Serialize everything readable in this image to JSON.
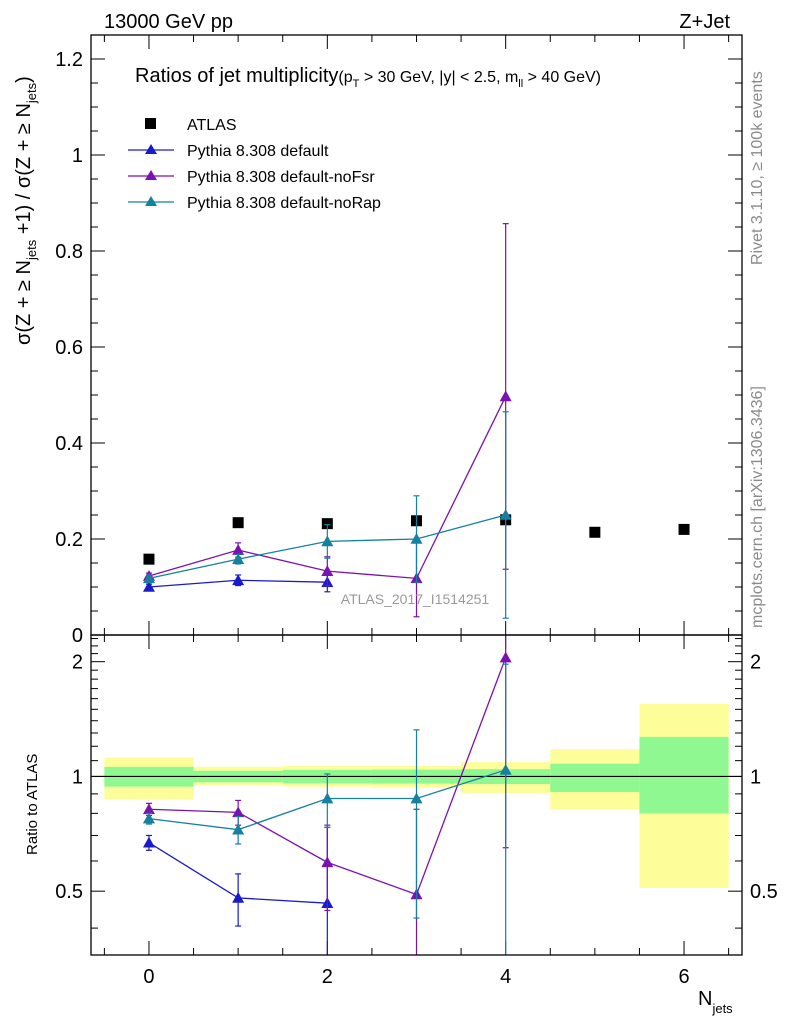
{
  "header": {
    "energy_label": "13000 GeV pp",
    "process_label": "Z+Jet"
  },
  "side_labels": {
    "rivet": "Rivet 3.1.10, ≥ 100k events",
    "mcplots": "mcplots.cern.ch [arXiv:1306.3436]"
  },
  "watermark": "ATLAS_2017_I1514251",
  "colors": {
    "data": "#000000",
    "default": "#1a1acc",
    "noFsr": "#7a12b0",
    "noRap": "#1580a0",
    "band_stat": "#90f890",
    "band_total": "#fdfd9a"
  },
  "chart_data": [
    {
      "type": "scatter",
      "panel": "main",
      "title": "Ratios of jet multiplicity",
      "title_cuts": {
        "p": "p",
        "T": "T",
        "cut1": " > 30 GeV, |y| < 2.5, m",
        "ll": "ll",
        "cut2": " > 40 GeV)",
        "open": "("
      },
      "ylabel": {
        "a": "σ(Z + ≥ N",
        "b": "jets",
        "c": " +1) / σ(Z + ≥ N",
        "d": "jets",
        "e": ")"
      },
      "xlim": [
        -0.65,
        6.65
      ],
      "ylim": [
        0,
        1.25
      ],
      "yticks": [
        0,
        0.2,
        0.4,
        0.6,
        0.8,
        1,
        1.2
      ],
      "ytick_labels": [
        "0",
        "0.2",
        "0.4",
        "0.6",
        "0.8",
        "1",
        "1.2"
      ],
      "legend_position": "top-left",
      "series": [
        {
          "name": "ATLAS",
          "key": "data",
          "marker": "square",
          "x": [
            0,
            1,
            2,
            3,
            4,
            5,
            6
          ],
          "y": [
            0.158,
            0.234,
            0.232,
            0.238,
            0.24,
            0.214,
            0.22
          ]
        },
        {
          "name": "Pythia 8.308 default",
          "key": "default",
          "marker": "triangle",
          "x": [
            0,
            1,
            2
          ],
          "y": [
            0.1,
            0.114,
            0.11
          ],
          "err": [
            0.006,
            0.011,
            0.02
          ]
        },
        {
          "name": "Pythia 8.308 default-noFsr",
          "key": "noFsr",
          "marker": "triangle",
          "x": [
            0,
            1,
            2,
            3,
            4
          ],
          "y": [
            0.123,
            0.177,
            0.133,
            0.118,
            0.497
          ],
          "err": [
            0.006,
            0.015,
            0.03,
            0.08,
            0.36
          ]
        },
        {
          "name": "Pythia 8.308 default-noRap",
          "key": "noRap",
          "marker": "triangle",
          "x": [
            0,
            1,
            2,
            3,
            4
          ],
          "y": [
            0.118,
            0.158,
            0.195,
            0.2,
            0.25
          ],
          "err": [
            0.005,
            0.01,
            0.035,
            0.09,
            0.215
          ]
        }
      ]
    },
    {
      "type": "scatter",
      "panel": "ratio",
      "xlabel": {
        "a": "N",
        "b": "jets"
      },
      "ylabel": "Ratio to ATLAS",
      "xlim": [
        -0.65,
        6.65
      ],
      "ylim": [
        0.34,
        2.35
      ],
      "ylog": true,
      "xticks": [
        0,
        2,
        4,
        6
      ],
      "xtick_labels": [
        "0",
        "2",
        "4",
        "6"
      ],
      "yticks": [
        0.5,
        1,
        2
      ],
      "ytick_labels": [
        "0.5",
        "1",
        "2"
      ],
      "reference_line": 1,
      "bands": [
        {
          "x": [
            -0.5,
            0.5
          ],
          "total": [
            0.87,
            1.12
          ],
          "stat": [
            0.94,
            1.06
          ]
        },
        {
          "x": [
            0.5,
            1.5
          ],
          "total": [
            0.95,
            1.06
          ],
          "stat": [
            0.965,
            1.035
          ]
        },
        {
          "x": [
            1.5,
            2.5
          ],
          "total": [
            0.94,
            1.065
          ],
          "stat": [
            0.96,
            1.04
          ]
        },
        {
          "x": [
            2.5,
            3.5
          ],
          "total": [
            0.935,
            1.065
          ],
          "stat": [
            0.958,
            1.042
          ]
        },
        {
          "x": [
            3.5,
            4.5
          ],
          "total": [
            0.905,
            1.09
          ],
          "stat": [
            0.955,
            1.045
          ]
        },
        {
          "x": [
            4.5,
            5.5
          ],
          "total": [
            0.82,
            1.18
          ],
          "stat": [
            0.91,
            1.08
          ]
        },
        {
          "x": [
            5.5,
            6.5
          ],
          "total": [
            0.51,
            1.55
          ],
          "stat": [
            0.8,
            1.27
          ]
        }
      ],
      "series": [
        {
          "name": "Pythia 8.308 default",
          "key": "default",
          "x": [
            0,
            1,
            2
          ],
          "y": [
            0.67,
            0.48,
            0.465
          ],
          "err": [
            0.03,
            0.075,
            0.27
          ]
        },
        {
          "name": "Pythia 8.308 default-noFsr",
          "key": "noFsr",
          "x": [
            0,
            1,
            2,
            3,
            4
          ],
          "y": [
            0.82,
            0.805,
            0.595,
            0.49,
            2.05
          ],
          "err": [
            0.03,
            0.06,
            0.15,
            0.33,
            1.4
          ]
        },
        {
          "name": "Pythia 8.308 default-noRap",
          "key": "noRap",
          "x": [
            0,
            1,
            2,
            3,
            4
          ],
          "y": [
            0.775,
            0.725,
            0.875,
            0.875,
            1.04
          ],
          "err": [
            0.025,
            0.06,
            0.14,
            0.45,
            0.93
          ]
        }
      ]
    }
  ]
}
